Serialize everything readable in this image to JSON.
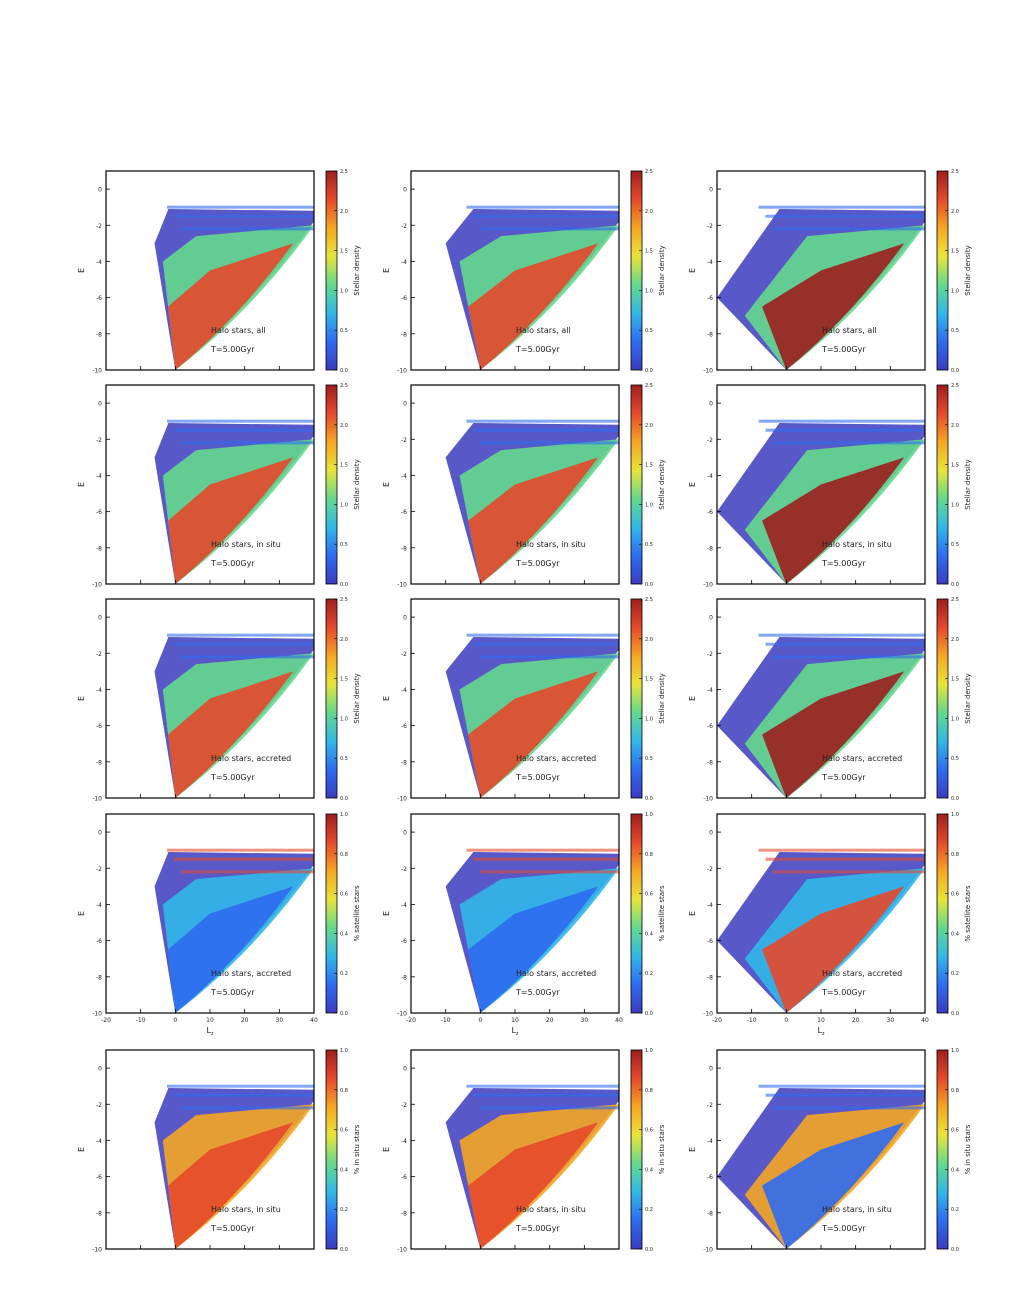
{
  "figure": {
    "colormap": [
      "#3b3bbf",
      "#2e6cf0",
      "#31b8e8",
      "#64d98c",
      "#e9e43a",
      "#f5a623",
      "#e5492b",
      "#9e1f1f"
    ],
    "rows": [
      {
        "panel_label": "Halo stars, all",
        "time_label": "T=5.00Gyr",
        "colorbar_label": "Stellar density",
        "colorbar_ticks": [
          "0.0",
          "0.5",
          "1.0",
          "1.5",
          "2.0",
          "2.5"
        ],
        "colorbar_range": [
          0,
          2.5
        ]
      },
      {
        "panel_label": "Halo stars, in situ",
        "time_label": "T=5.00Gyr",
        "colorbar_label": "Stellar density",
        "colorbar_ticks": [
          "0.0",
          "0.5",
          "1.0",
          "1.5",
          "2.0",
          "2.5"
        ],
        "colorbar_range": [
          0,
          2.5
        ]
      },
      {
        "panel_label": "Halo stars, accreted",
        "time_label": "T=5.00Gyr",
        "colorbar_label": "Stellar density",
        "colorbar_ticks": [
          "0.0",
          "0.5",
          "1.0",
          "1.5",
          "2.0",
          "2.5"
        ],
        "colorbar_range": [
          0,
          2.5
        ]
      },
      {
        "panel_label": "Halo stars, accreted",
        "time_label": "T=5.00Gyr",
        "colorbar_label": "% satellite stars",
        "colorbar_ticks": [
          "0.0",
          "0.2",
          "0.4",
          "0.6",
          "0.8",
          "1.0"
        ],
        "colorbar_range": [
          0,
          1
        ]
      },
      {
        "panel_label": "Halo stars, in situ",
        "time_label": "T=5.00Gyr",
        "colorbar_label": "% in situ stars",
        "colorbar_ticks": [
          "0.0",
          "0.2",
          "0.4",
          "0.6",
          "0.8",
          "1.0"
        ],
        "colorbar_range": [
          0,
          1
        ]
      }
    ]
  },
  "chart_data": {
    "type": "heatmap",
    "layout": "5 rows x 3 columns",
    "ylabel": "E",
    "xlabel": "L_z",
    "xlim": [
      -20,
      40
    ],
    "ylim": [
      -10,
      1
    ],
    "ytick_labels": [
      "0",
      "-2",
      "-4",
      "-6",
      "-8",
      "-10"
    ],
    "xtick_labels": [
      "-20",
      "-10",
      "0",
      "10",
      "20",
      "30",
      "40"
    ],
    "panels_per_row": 3
  }
}
